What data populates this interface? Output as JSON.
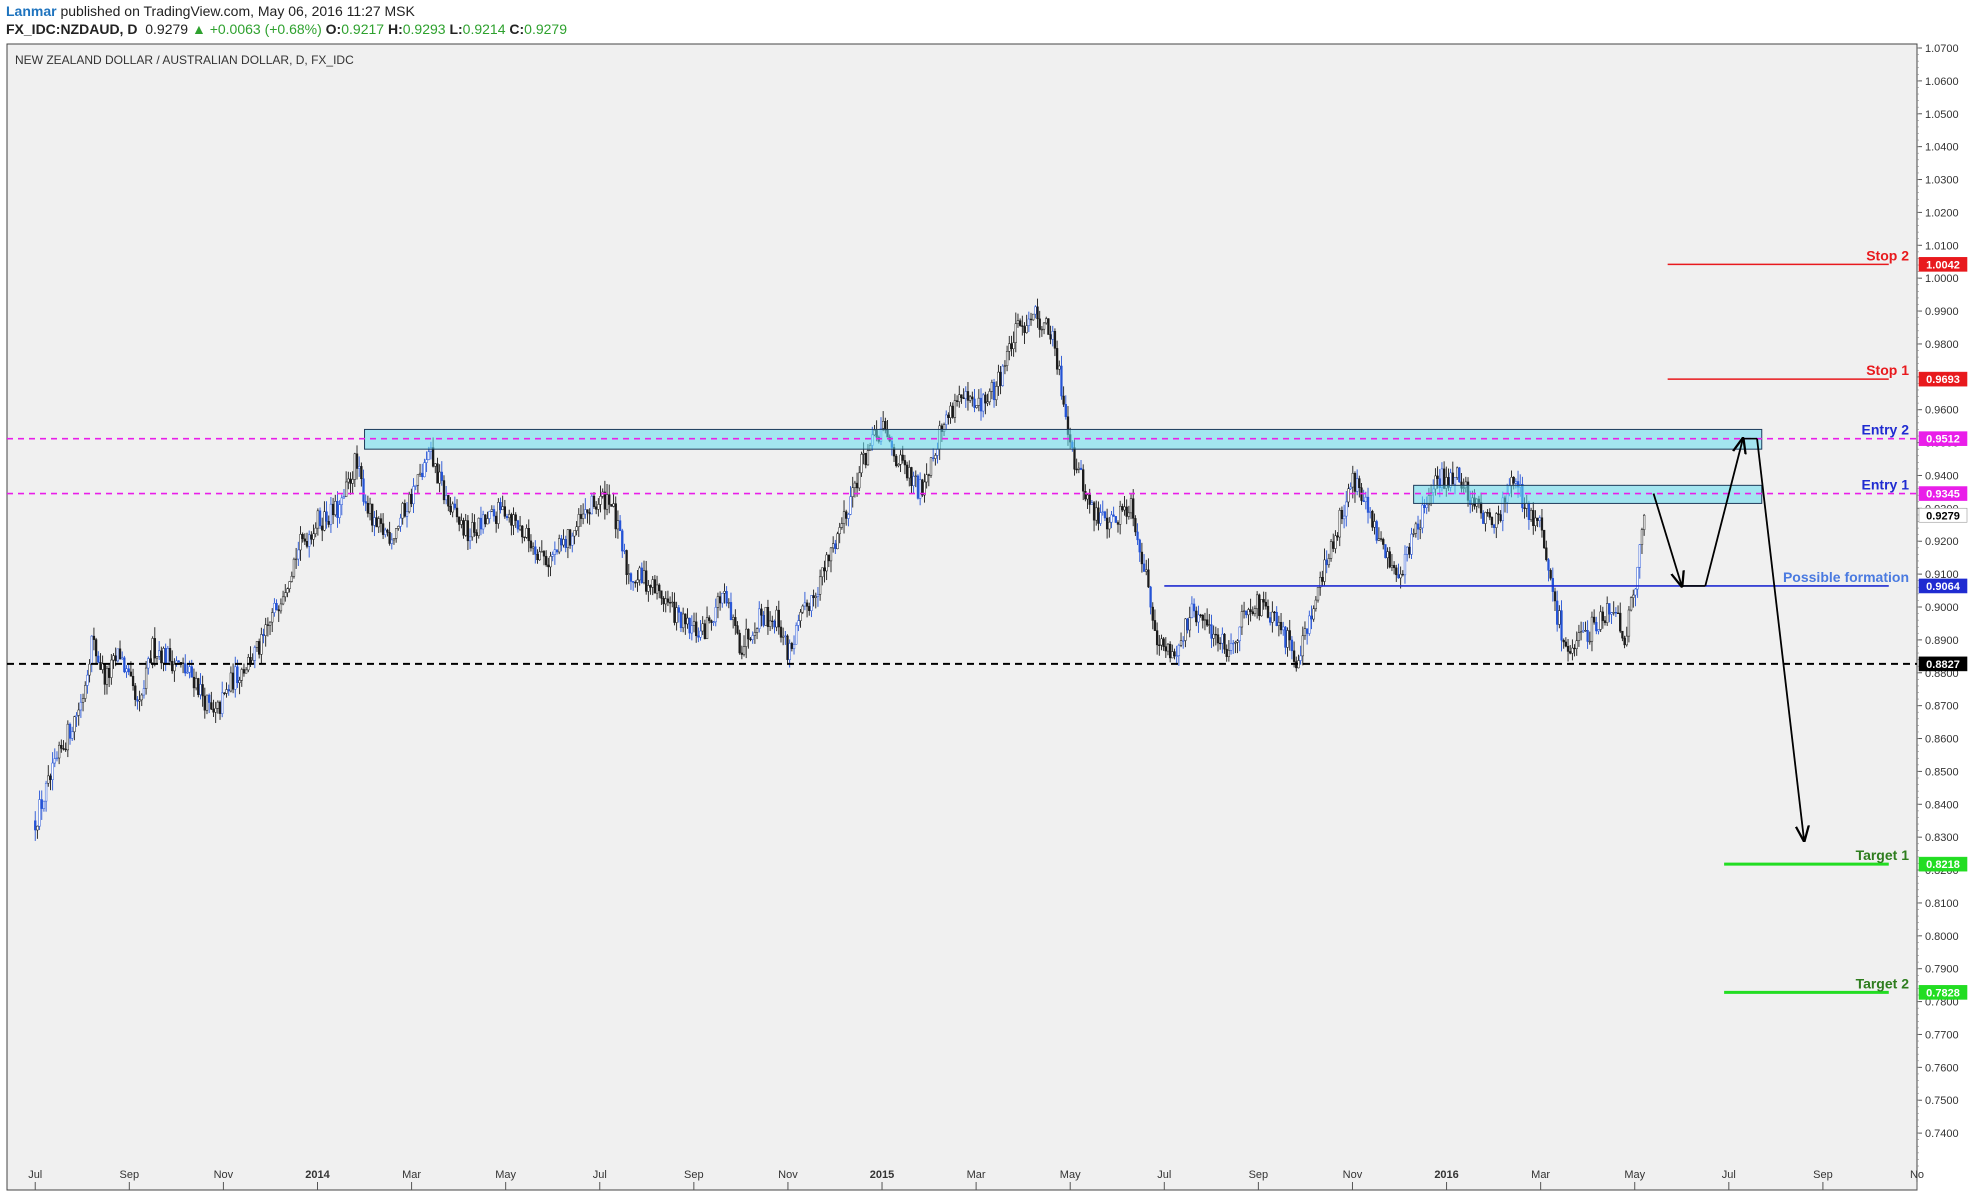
{
  "header": {
    "author": "Lanmar",
    "published_text": "published on TradingView.com, May 06, 2016 11:27 MSK",
    "symbol": "FX_IDC:NZDAUD, D",
    "last": "0.9279",
    "change": "▲ +0.0063 (+0.68%)",
    "open_label": "O:",
    "open": "0.9217",
    "high_label": "H:",
    "high": "0.9293",
    "low_label": "L:",
    "low": "0.9214",
    "close_label": "C:",
    "close": "0.9279"
  },
  "chart_data": {
    "type": "candlestick",
    "title": "NEW ZEALAND DOLLAR / AUSTRALIAN DOLLAR, D, FX_IDC",
    "ylim": [
      0.73,
      1.07
    ],
    "y_ticks": [
      "1.0700",
      "1.0600",
      "1.0500",
      "1.0400",
      "1.0300",
      "1.0200",
      "1.0100",
      "1.0000",
      "0.9900",
      "0.9800",
      "0.9700",
      "0.9600",
      "0.9500",
      "0.9400",
      "0.9300",
      "0.9200",
      "0.9100",
      "0.9000",
      "0.8900",
      "0.8800",
      "0.8700",
      "0.8600",
      "0.8500",
      "0.8400",
      "0.8300",
      "0.8200",
      "0.8100",
      "0.8000",
      "0.7900",
      "0.7800",
      "0.7700",
      "0.7600",
      "0.7500",
      "0.7400"
    ],
    "x_ticks": [
      {
        "label": "Jul",
        "t": 0
      },
      {
        "label": "Sep",
        "t": 2
      },
      {
        "label": "Nov",
        "t": 4
      },
      {
        "label": "2014",
        "t": 6
      },
      {
        "label": "Mar",
        "t": 8
      },
      {
        "label": "May",
        "t": 10
      },
      {
        "label": "Jul",
        "t": 12
      },
      {
        "label": "Sep",
        "t": 14
      },
      {
        "label": "Nov",
        "t": 16
      },
      {
        "label": "2015",
        "t": 18
      },
      {
        "label": "Mar",
        "t": 20
      },
      {
        "label": "May",
        "t": 22
      },
      {
        "label": "Jul",
        "t": 24
      },
      {
        "label": "Sep",
        "t": 26
      },
      {
        "label": "Nov",
        "t": 28
      },
      {
        "label": "2016",
        "t": 30
      },
      {
        "label": "Mar",
        "t": 32
      },
      {
        "label": "May",
        "t": 34
      },
      {
        "label": "Jul",
        "t": 36
      },
      {
        "label": "Sep",
        "t": 38
      },
      {
        "label": "No",
        "t": 40
      }
    ],
    "x_range_months": [
      -0.6,
      40.0
    ],
    "last_data_month": 34.2,
    "price_path": [
      [
        0.0,
        0.835
      ],
      [
        0.6,
        0.858
      ],
      [
        1.0,
        0.872
      ],
      [
        1.2,
        0.89
      ],
      [
        1.5,
        0.878
      ],
      [
        1.8,
        0.886
      ],
      [
        2.2,
        0.868
      ],
      [
        2.5,
        0.888
      ],
      [
        2.9,
        0.884
      ],
      [
        3.4,
        0.878
      ],
      [
        3.8,
        0.866
      ],
      [
        4.2,
        0.878
      ],
      [
        4.8,
        0.888
      ],
      [
        5.2,
        0.903
      ],
      [
        5.6,
        0.918
      ],
      [
        6.0,
        0.926
      ],
      [
        6.5,
        0.93
      ],
      [
        6.8,
        0.944
      ],
      [
        7.2,
        0.924
      ],
      [
        7.6,
        0.922
      ],
      [
        8.0,
        0.934
      ],
      [
        8.4,
        0.946
      ],
      [
        8.8,
        0.93
      ],
      [
        9.2,
        0.922
      ],
      [
        9.6,
        0.926
      ],
      [
        10.0,
        0.93
      ],
      [
        10.4,
        0.922
      ],
      [
        10.9,
        0.914
      ],
      [
        11.3,
        0.92
      ],
      [
        11.8,
        0.93
      ],
      [
        12.2,
        0.934
      ],
      [
        12.6,
        0.91
      ],
      [
        13.0,
        0.908
      ],
      [
        13.4,
        0.902
      ],
      [
        13.8,
        0.894
      ],
      [
        14.2,
        0.892
      ],
      [
        14.6,
        0.904
      ],
      [
        15.0,
        0.888
      ],
      [
        15.4,
        0.898
      ],
      [
        15.8,
        0.896
      ],
      [
        16.0,
        0.886
      ],
      [
        16.4,
        0.9
      ],
      [
        16.8,
        0.912
      ],
      [
        17.2,
        0.928
      ],
      [
        17.6,
        0.945
      ],
      [
        18.0,
        0.954
      ],
      [
        18.4,
        0.943
      ],
      [
        18.8,
        0.935
      ],
      [
        19.2,
        0.952
      ],
      [
        19.6,
        0.964
      ],
      [
        20.0,
        0.96
      ],
      [
        20.4,
        0.966
      ],
      [
        20.8,
        0.982
      ],
      [
        21.2,
        0.99
      ],
      [
        21.6,
        0.983
      ],
      [
        21.9,
        0.96
      ],
      [
        22.1,
        0.944
      ],
      [
        22.5,
        0.928
      ],
      [
        22.9,
        0.926
      ],
      [
        23.3,
        0.932
      ],
      [
        23.6,
        0.91
      ],
      [
        23.9,
        0.888
      ],
      [
        24.2,
        0.886
      ],
      [
        24.6,
        0.898
      ],
      [
        25.0,
        0.893
      ],
      [
        25.4,
        0.887
      ],
      [
        25.8,
        0.902
      ],
      [
        26.2,
        0.898
      ],
      [
        26.6,
        0.89
      ],
      [
        26.8,
        0.884
      ],
      [
        27.2,
        0.902
      ],
      [
        27.6,
        0.92
      ],
      [
        28.0,
        0.94
      ],
      [
        28.3,
        0.93
      ],
      [
        28.6,
        0.918
      ],
      [
        29.0,
        0.91
      ],
      [
        29.4,
        0.926
      ],
      [
        29.8,
        0.938
      ],
      [
        30.2,
        0.94
      ],
      [
        30.6,
        0.932
      ],
      [
        31.0,
        0.924
      ],
      [
        31.4,
        0.938
      ],
      [
        31.8,
        0.928
      ],
      [
        32.0,
        0.924
      ],
      [
        32.3,
        0.9
      ],
      [
        32.6,
        0.886
      ],
      [
        32.9,
        0.89
      ],
      [
        33.3,
        0.898
      ],
      [
        33.6,
        0.9
      ],
      [
        33.8,
        0.89
      ],
      [
        34.0,
        0.906
      ],
      [
        34.2,
        0.928
      ]
    ],
    "annotations": {
      "horizontal_lines": [
        {
          "name": "support-dashed-line",
          "y": 0.8827,
          "color": "#000000",
          "style": "dashed"
        },
        {
          "name": "entry1-dashed-line",
          "y": 0.9345,
          "color": "#e91ee9",
          "style": "dashed"
        },
        {
          "name": "entry2-dashed-line",
          "y": 0.9512,
          "color": "#e91ee9",
          "style": "dashed"
        },
        {
          "name": "possible-formation-line",
          "y": 0.9064,
          "color": "#1f2bd1",
          "style": "solid",
          "t_start": 24.0,
          "t_end": 39.4
        },
        {
          "name": "stop2-line",
          "y": 1.0042,
          "color": "#e8191d",
          "style": "solid",
          "t_start": 34.7,
          "t_end": 39.4
        },
        {
          "name": "stop1-line",
          "y": 0.9693,
          "color": "#e8191d",
          "style": "solid",
          "t_start": 34.7,
          "t_end": 39.4
        },
        {
          "name": "target1-line",
          "y": 0.8218,
          "color": "#22dd22",
          "style": "solid",
          "t_start": 35.9,
          "t_end": 39.4
        },
        {
          "name": "target2-line",
          "y": 0.7828,
          "color": "#22dd22",
          "style": "solid",
          "t_start": 35.9,
          "t_end": 39.4
        }
      ],
      "zones": [
        {
          "name": "entry2-zone",
          "t_start": 7.0,
          "t_end": 36.7,
          "y_low": 0.948,
          "y_high": 0.954
        },
        {
          "name": "entry1-zone",
          "t_start": 29.3,
          "t_end": 36.7,
          "y_low": 0.9315,
          "y_high": 0.937
        }
      ],
      "labels": [
        {
          "name": "stop2-label",
          "text": "Stop 2",
          "y": 1.0042,
          "color": "#e8191d"
        },
        {
          "name": "stop1-label",
          "text": "Stop 1",
          "y": 0.9693,
          "color": "#e8191d"
        },
        {
          "name": "entry2-label",
          "text": "Entry 2",
          "y": 0.9512,
          "color": "#1f2bd1"
        },
        {
          "name": "entry1-label",
          "text": "Entry 1",
          "y": 0.9345,
          "color": "#1f2bd1"
        },
        {
          "name": "possible-formation-label",
          "text": "Possible formation",
          "y": 0.9064,
          "color": "#4a7ae0"
        },
        {
          "name": "target1-label",
          "text": "Target 1",
          "y": 0.8218,
          "color": "#2e7d1e"
        },
        {
          "name": "target2-label",
          "text": "Target 2",
          "y": 0.7828,
          "color": "#2e7d1e"
        }
      ],
      "price_tags": [
        {
          "name": "tag-stop2",
          "text": "1.0042",
          "y": 1.0042,
          "bg": "#e8191d"
        },
        {
          "name": "tag-stop1",
          "text": "0.9693",
          "y": 0.9693,
          "bg": "#e8191d"
        },
        {
          "name": "tag-entry2",
          "text": "0.9512",
          "y": 0.9512,
          "bg": "#e91ee9"
        },
        {
          "name": "tag-entry1",
          "text": "0.9345",
          "y": 0.9345,
          "bg": "#e91ee9"
        },
        {
          "name": "tag-last",
          "text": "0.9279",
          "y": 0.9279,
          "bg": "#ffffff",
          "fg": "#000000"
        },
        {
          "name": "tag-formation",
          "text": "0.9064",
          "y": 0.9064,
          "bg": "#1f2bd1"
        },
        {
          "name": "tag-support",
          "text": "0.8827",
          "y": 0.8827,
          "bg": "#000000"
        },
        {
          "name": "tag-target1",
          "text": "0.8218",
          "y": 0.8218,
          "bg": "#22dd22"
        },
        {
          "name": "tag-target2",
          "text": "0.7828",
          "y": 0.7828,
          "bg": "#22dd22"
        }
      ],
      "projection_path": [
        [
          34.4,
          0.9345
        ],
        [
          35.0,
          0.9064
        ],
        [
          35.5,
          0.9064
        ],
        [
          36.3,
          0.9512
        ],
        [
          36.6,
          0.9512
        ],
        [
          37.6,
          0.829
        ]
      ]
    }
  }
}
